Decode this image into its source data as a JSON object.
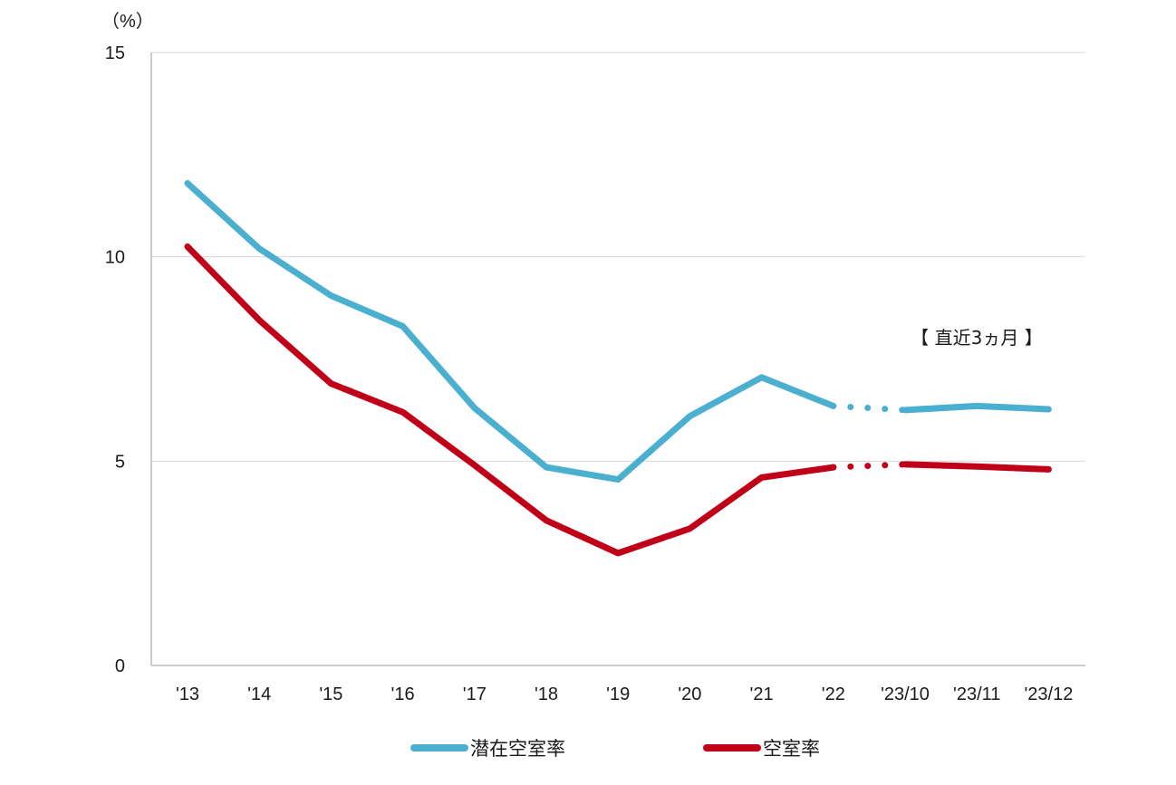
{
  "chart_data": {
    "type": "line",
    "unit_label": "（%）",
    "categories": [
      "'13",
      "'14",
      "'15",
      "'16",
      "'17",
      "'18",
      "'19",
      "'20",
      "'21",
      "'22",
      "'23/10",
      "'23/11",
      "'23/12"
    ],
    "ylim": [
      0,
      15
    ],
    "yticks": [
      0,
      5,
      10,
      15
    ],
    "grid": true,
    "annotation": "【 直近3ヵ月 】",
    "series": [
      {
        "name": "潜在空室率",
        "color": "#4bafd0",
        "values": [
          11.8,
          10.2,
          9.05,
          8.3,
          6.3,
          4.85,
          4.55,
          6.1,
          7.05,
          6.35,
          6.25,
          6.35,
          6.27
        ]
      },
      {
        "name": "空室率",
        "color": "#c00018",
        "values": [
          10.25,
          8.45,
          6.9,
          6.2,
          4.9,
          3.55,
          2.75,
          3.35,
          4.6,
          4.85,
          4.92,
          4.87,
          4.8
        ]
      }
    ],
    "dotted_segment": {
      "from_category": "'22",
      "to_category": "'23/10"
    },
    "legend_position": "bottom"
  }
}
